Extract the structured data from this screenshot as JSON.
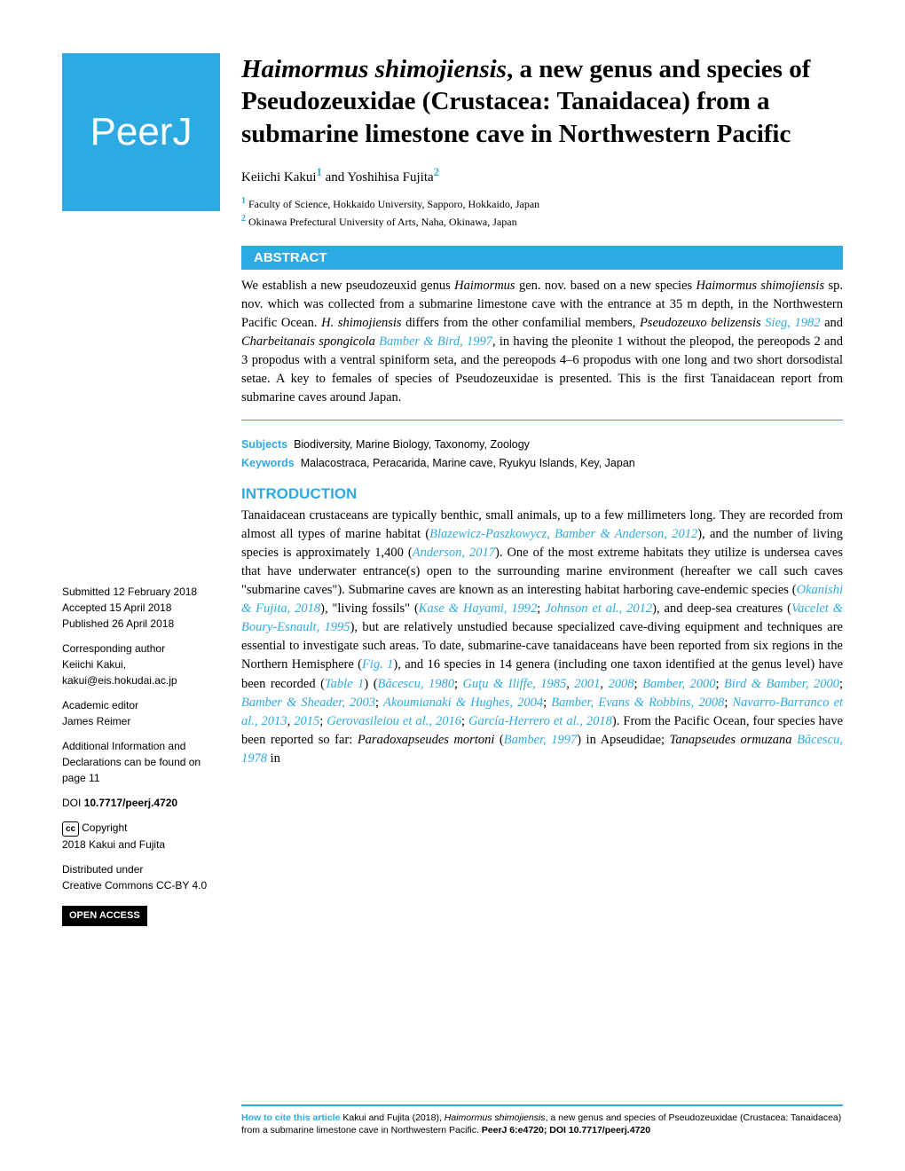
{
  "logo": {
    "text_bold": "Peer",
    "text_thin": "J",
    "bg_color": "#2eaae2",
    "text_color": "#ffffff",
    "fontsize": 44
  },
  "title": {
    "italic_lead": "Haimormus shimojiensis",
    "rest": ", a new genus and species of Pseudozeuxidae (Crustacea: Tanaidacea) from a submarine limestone cave in Northwestern Pacific",
    "fontsize": 29
  },
  "authors": {
    "a1_name": "Keiichi Kakui",
    "a1_sup": "1",
    "a2_name": "Yoshihisa Fujita",
    "a2_sup": "2",
    "fontsize": 15
  },
  "affiliations": {
    "af1_sup": "1",
    "af1_text": "Faculty of Science, Hokkaido University, Sapporo, Hokkaido, Japan",
    "af2_sup": "2",
    "af2_text": "Okinawa Prefectural University of Arts, Naha, Okinawa, Japan",
    "fontsize": 12
  },
  "abstract": {
    "header": "ABSTRACT",
    "header_bg": "#2eaae2",
    "header_color": "#ffffff",
    "border_color": "#2eaae2",
    "body_fontsize": 14.5,
    "body_html": "We establish a new pseudozeuxid genus <i>Haimormus</i> gen. nov. based on a new species <i>Haimormus shimojiensis</i> sp. nov. which was collected from a submarine limestone cave with the entrance at 35 m depth, in the Northwestern Pacific Ocean. <i>H. shimojiensis</i> differs from the other confamilial members, <i>Pseudozeuxo belizensis</i> <span class=\"link-ref\">Sieg, 1982</span> and <i>Charbeitanais spongicola</i> <span class=\"link-ref\">Bamber & Bird, 1997</span>, in having the pleonite 1 without the pleopod, the pereopods 2 and 3 propodus with a ventral spiniform seta, and the pereopods 4–6 propodus with one long and two short dorsodistal setae. A key to females of species of Pseudozeuxidae is presented. This is the first Tanaidacean report from submarine caves around Japan."
  },
  "subjects": {
    "label": "Subjects",
    "text": "Biodiversity, Marine Biology, Taxonomy, Zoology"
  },
  "keywords": {
    "label": "Keywords",
    "text": "Malacostraca, Peracarida, Marine cave, Ryukyu Islands, Key, Japan"
  },
  "intro": {
    "heading": "INTRODUCTION",
    "heading_color": "#2eaae2",
    "body_html": "Tanaidacean crustaceans are typically benthic, small animals, up to a few millimeters long. They are recorded from almost all types of marine habitat (<span class=\"ref\">Blazewicz-Paszkowycz, Bamber & Anderson, 2012</span>), and the number of living species is approximately 1,400 (<span class=\"ref\">Anderson, 2017</span>). One of the most extreme habitats they utilize is undersea caves that have underwater entrance(s) open to the surrounding marine environment (hereafter we call such caves \"submarine caves\"). Submarine caves are known as an interesting habitat harboring cave-endemic species (<span class=\"ref\">Okanishi & Fujita, 2018</span>), \"living fossils\" (<span class=\"ref\">Kase & Hayami, 1992</span>; <span class=\"ref\">Johnson et al., 2012</span>), and deep-sea creatures (<span class=\"ref\">Vacelet & Boury-Esnault, 1995</span>), but are relatively unstudied because specialized cave-diving equipment and techniques are essential to investigate such areas. To date, submarine-cave tanaidaceans have been reported from six regions in the Northern Hemisphere (<span class=\"ref\">Fig. 1</span>), and 16 species in 14 genera (including one taxon identified at the genus level) have been recorded (<span class=\"ref\">Table 1</span>) (<span class=\"ref\">Băcescu, 1980</span>; <span class=\"ref\">Guţu & Iliffe, 1985</span>, <span class=\"ref\">2001</span>, <span class=\"ref\">2008</span>; <span class=\"ref\">Bamber, 2000</span>; <span class=\"ref\">Bird & Bamber, 2000</span>; <span class=\"ref\">Bamber & Sheader, 2003</span>; <span class=\"ref\">Akoumianaki & Hughes, 2004</span>; <span class=\"ref\">Bamber, Evans & Robbins, 2008</span>; <span class=\"ref\">Navarro-Barranco et al., 2013</span>, <span class=\"ref\">2015</span>; <span class=\"ref\">Gerovasileiou et al., 2016</span>; <span class=\"ref\">García-Herrero et al., 2018</span>). From the Pacific Ocean, four species have been reported so far: <i>Paradoxapseudes mortoni</i> (<span class=\"ref\">Bamber, 1997</span>) in Apseudidae; <i>Tanapseudes ormuzana</i> <span class=\"ref\">Băcescu, 1978</span> in"
  },
  "sidebar": {
    "submitted_label": "Submitted",
    "submitted_date": "12 February 2018",
    "accepted_label": "Accepted",
    "accepted_date": "15 April 2018",
    "published_label": "Published",
    "published_date": "26 April 2018",
    "corr_author_label": "Corresponding author",
    "corr_author_name": "Keiichi Kakui,",
    "corr_author_email": "kakui@eis.hokudai.ac.jp",
    "editor_label": "Academic editor",
    "editor_name": "James Reimer",
    "additional_info": "Additional Information and Declarations can be found on page 11",
    "doi_label": "DOI",
    "doi_value": "10.7717/peerj.4720",
    "cc_symbol": "cc",
    "copyright_label": "Copyright",
    "copyright_text": "2018 Kakui and Fujita",
    "license_label": "Distributed under",
    "license_text": "Creative Commons CC-BY 4.0",
    "open_access": "OPEN ACCESS",
    "fontsize": 12
  },
  "footer": {
    "cite_label": "How to cite this article",
    "cite_text_html": "Kakui and Fujita (2018), <i>Haimormus shimojiensis</i>, a new genus and species of Pseudozeuxidae (Crustacea: Tanaidacea) from a submarine limestone cave in Northwestern Pacific. <b>PeerJ 6:e4720; DOI 10.7717/peerj.4720</b>",
    "border_color": "#2eaae2",
    "fontsize": 10.5
  },
  "colors": {
    "accent": "#2eaae2",
    "text": "#000000",
    "bg": "#ffffff"
  }
}
